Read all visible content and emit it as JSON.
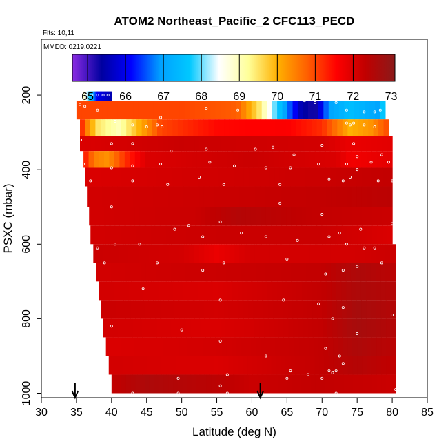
{
  "chart_data": {
    "type": "heatmap",
    "title": "ATOM2 Northeast_Pacific_2 CFC113_PECD",
    "flights_note": "Flts: 10,11",
    "date_note": "MMDD: 0219,0221",
    "xlabel": "Latitude (deg N)",
    "ylabel": "PSXC (mbar)",
    "xlim": [
      30,
      85
    ],
    "ylim": [
      1000,
      50
    ],
    "y_reversed": true,
    "x_ticks": [
      30,
      35,
      40,
      45,
      50,
      55,
      60,
      65,
      70,
      75,
      80,
      85
    ],
    "y_ticks": [
      200,
      400,
      600,
      800,
      1000
    ],
    "grid": false,
    "colorbar": {
      "min": 64.6,
      "max": 73.1,
      "ticks": [
        65,
        66,
        67,
        68,
        69,
        70,
        71,
        72,
        73
      ],
      "colors": [
        "#8a2be2",
        "#0000a0",
        "#0000ff",
        "#00a0ff",
        "#00c8ff",
        "#ffffff",
        "#ffff99",
        "#ffb000",
        "#ff6000",
        "#ff0000",
        "#c00000",
        "#8b1a1a"
      ]
    },
    "arrows_x": [
      34.8,
      61.2
    ],
    "bands": [
      {
        "p_top": 190,
        "p_bot": 215,
        "lat_start": 36.0,
        "lat_end": 40.0,
        "stops": [
          [
            36.0,
            69.0
          ],
          [
            37.0,
            67.5
          ],
          [
            38.0,
            66.0
          ],
          [
            40.0,
            65.5
          ]
        ]
      },
      {
        "p_top": 215,
        "p_bot": 265,
        "lat_start": 35.0,
        "lat_end": 79.0,
        "stops": [
          [
            35.0,
            71.0
          ],
          [
            50.0,
            71.0
          ],
          [
            58.0,
            70.8
          ],
          [
            61.0,
            69.5
          ],
          [
            64.0,
            67.5
          ],
          [
            67.0,
            65.5
          ],
          [
            69.0,
            65.2
          ],
          [
            71.0,
            67.0
          ],
          [
            74.0,
            67.5
          ],
          [
            78.0,
            67.0
          ],
          [
            79.0,
            68.0
          ]
        ]
      },
      {
        "p_top": 265,
        "p_bot": 310,
        "lat_start": 35.5,
        "lat_end": 79.5,
        "stops": [
          [
            35.5,
            71.5
          ],
          [
            36.5,
            70.5
          ],
          [
            38.0,
            69.5
          ],
          [
            41.0,
            69.0
          ],
          [
            44.0,
            70.0
          ],
          [
            47.0,
            71.0
          ],
          [
            55.0,
            71.5
          ],
          [
            65.0,
            71.6
          ],
          [
            70.0,
            71.2
          ],
          [
            74.0,
            70.0
          ],
          [
            77.0,
            70.3
          ],
          [
            79.5,
            71.0
          ]
        ]
      },
      {
        "p_top": 310,
        "p_bot": 350,
        "lat_start": 35.5,
        "lat_end": 80.0,
        "stops": [
          [
            35.5,
            72.0
          ],
          [
            50.0,
            72.2
          ],
          [
            70.0,
            72.1
          ],
          [
            74.0,
            71.8
          ],
          [
            80.0,
            71.9
          ]
        ]
      },
      {
        "p_top": 350,
        "p_bot": 395,
        "lat_start": 36.0,
        "lat_end": 80.0,
        "stops": [
          [
            36.0,
            71.5
          ],
          [
            37.5,
            70.5
          ],
          [
            39.5,
            70.3
          ],
          [
            42.0,
            71.2
          ],
          [
            45.0,
            72.0
          ],
          [
            60.0,
            72.2
          ],
          [
            72.0,
            72.0
          ],
          [
            74.0,
            71.7
          ],
          [
            80.0,
            71.9
          ]
        ]
      },
      {
        "p_top": 395,
        "p_bot": 445,
        "lat_start": 36.2,
        "lat_end": 80.0,
        "stops": [
          [
            36.2,
            72.0
          ],
          [
            50.0,
            72.1
          ],
          [
            70.0,
            72.2
          ],
          [
            80.0,
            72.3
          ]
        ]
      },
      {
        "p_top": 445,
        "p_bot": 500,
        "lat_start": 36.5,
        "lat_end": 80.0,
        "stops": [
          [
            36.5,
            72.1
          ],
          [
            55.0,
            72.2
          ],
          [
            70.0,
            72.3
          ],
          [
            80.0,
            72.4
          ]
        ]
      },
      {
        "p_top": 500,
        "p_bot": 550,
        "lat_start": 36.8,
        "lat_end": 80.0,
        "stops": [
          [
            36.8,
            72.1
          ],
          [
            52.0,
            72.2
          ],
          [
            58.0,
            72.5
          ],
          [
            68.0,
            72.3
          ],
          [
            80.0,
            72.2
          ]
        ]
      },
      {
        "p_top": 550,
        "p_bot": 600,
        "lat_start": 37.0,
        "lat_end": 80.0,
        "stops": [
          [
            37.0,
            72.1
          ],
          [
            55.0,
            72.2
          ],
          [
            70.0,
            72.2
          ],
          [
            80.0,
            72.0
          ]
        ]
      },
      {
        "p_top": 600,
        "p_bot": 650,
        "lat_start": 37.4,
        "lat_end": 80.5,
        "stops": [
          [
            37.4,
            72.2
          ],
          [
            50.0,
            72.1
          ],
          [
            55.0,
            71.8
          ],
          [
            60.0,
            72.1
          ],
          [
            75.0,
            72.1
          ],
          [
            80.5,
            72.2
          ]
        ]
      },
      {
        "p_top": 650,
        "p_bot": 700,
        "lat_start": 37.8,
        "lat_end": 80.5,
        "stops": [
          [
            37.8,
            72.1
          ],
          [
            55.0,
            72.2
          ],
          [
            70.0,
            72.3
          ],
          [
            75.0,
            72.6
          ],
          [
            80.5,
            72.4
          ]
        ]
      },
      {
        "p_top": 700,
        "p_bot": 750,
        "lat_start": 38.2,
        "lat_end": 80.5,
        "stops": [
          [
            38.2,
            72.1
          ],
          [
            55.0,
            72.0
          ],
          [
            70.0,
            72.3
          ],
          [
            75.0,
            72.6
          ],
          [
            80.5,
            72.5
          ]
        ]
      },
      {
        "p_top": 750,
        "p_bot": 800,
        "lat_start": 38.5,
        "lat_end": 80.5,
        "stops": [
          [
            38.5,
            72.2
          ],
          [
            55.0,
            72.1
          ],
          [
            70.0,
            72.3
          ],
          [
            75.0,
            72.7
          ],
          [
            80.5,
            72.5
          ]
        ]
      },
      {
        "p_top": 800,
        "p_bot": 850,
        "lat_start": 38.8,
        "lat_end": 80.5,
        "stops": [
          [
            38.8,
            72.1
          ],
          [
            55.0,
            72.0
          ],
          [
            70.0,
            72.3
          ],
          [
            75.0,
            72.7
          ],
          [
            80.5,
            72.5
          ]
        ]
      },
      {
        "p_top": 850,
        "p_bot": 900,
        "lat_start": 39.2,
        "lat_end": 80.5,
        "stops": [
          [
            39.2,
            72.0
          ],
          [
            55.0,
            72.1
          ],
          [
            70.0,
            72.3
          ],
          [
            75.0,
            72.6
          ],
          [
            80.5,
            72.4
          ]
        ]
      },
      {
        "p_top": 900,
        "p_bot": 950,
        "lat_start": 39.6,
        "lat_end": 80.5,
        "stops": [
          [
            39.6,
            72.1
          ],
          [
            55.0,
            72.0
          ],
          [
            70.0,
            72.3
          ],
          [
            75.0,
            72.5
          ],
          [
            80.5,
            72.3
          ]
        ]
      },
      {
        "p_top": 950,
        "p_bot": 1000,
        "lat_start": 40.0,
        "lat_end": 80.5,
        "stops": [
          [
            40.0,
            72.3
          ],
          [
            45.0,
            72.6
          ],
          [
            55.0,
            72.4
          ],
          [
            60.0,
            72.2
          ],
          [
            70.0,
            72.3
          ],
          [
            80.5,
            72.2
          ]
        ]
      }
    ],
    "samples": [
      [
        36.5,
        200
      ],
      [
        37.2,
        200
      ],
      [
        38.0,
        200
      ],
      [
        38.8,
        200
      ],
      [
        39.5,
        200
      ],
      [
        35.5,
        225
      ],
      [
        36.2,
        230
      ],
      [
        38.0,
        240
      ],
      [
        47.0,
        260
      ],
      [
        53.5,
        235
      ],
      [
        58.0,
        240
      ],
      [
        67.5,
        215
      ],
      [
        69.0,
        220
      ],
      [
        72.0,
        220
      ],
      [
        73.5,
        240
      ],
      [
        76.0,
        245
      ],
      [
        77.5,
        245
      ],
      [
        78.3,
        240
      ],
      [
        40.5,
        270
      ],
      [
        43.0,
        280
      ],
      [
        45.0,
        285
      ],
      [
        46.5,
        280
      ],
      [
        47.2,
        285
      ],
      [
        73.5,
        275
      ],
      [
        74.0,
        280
      ],
      [
        74.5,
        275
      ],
      [
        76.0,
        280
      ],
      [
        77.5,
        285
      ],
      [
        35.6,
        320
      ],
      [
        40.0,
        330
      ],
      [
        43.0,
        330
      ],
      [
        48.5,
        350
      ],
      [
        53.5,
        345
      ],
      [
        60.5,
        345
      ],
      [
        63.0,
        340
      ],
      [
        66.0,
        360
      ],
      [
        70.0,
        335
      ],
      [
        74.5,
        330
      ],
      [
        75.0,
        365
      ],
      [
        78.5,
        360
      ],
      [
        36.0,
        385
      ],
      [
        40.0,
        395
      ],
      [
        43.0,
        390
      ],
      [
        47.0,
        385
      ],
      [
        54.0,
        380
      ],
      [
        57.5,
        390
      ],
      [
        62.0,
        395
      ],
      [
        65.5,
        395
      ],
      [
        69.5,
        385
      ],
      [
        73.5,
        385
      ],
      [
        75.0,
        400
      ],
      [
        77.0,
        380
      ],
      [
        79.5,
        380
      ],
      [
        37.0,
        430
      ],
      [
        43.0,
        430
      ],
      [
        48.0,
        440
      ],
      [
        52.5,
        420
      ],
      [
        56.0,
        440
      ],
      [
        64.0,
        440
      ],
      [
        71.0,
        425
      ],
      [
        73.0,
        430
      ],
      [
        74.0,
        420
      ],
      [
        78.0,
        430
      ],
      [
        80.0,
        430
      ],
      [
        40.0,
        500
      ],
      [
        49.0,
        560
      ],
      [
        51.0,
        550
      ],
      [
        55.5,
        540
      ],
      [
        58.5,
        570
      ],
      [
        64.0,
        490
      ],
      [
        70.0,
        520
      ],
      [
        72.5,
        570
      ],
      [
        75.5,
        560
      ],
      [
        80.0,
        545
      ],
      [
        38.0,
        610
      ],
      [
        40.5,
        600
      ],
      [
        44.0,
        600
      ],
      [
        53.0,
        580
      ],
      [
        62.0,
        580
      ],
      [
        66.5,
        590
      ],
      [
        71.0,
        580
      ],
      [
        73.5,
        600
      ],
      [
        76.0,
        610
      ],
      [
        77.5,
        610
      ],
      [
        81.5,
        590
      ],
      [
        39.0,
        650
      ],
      [
        46.5,
        650
      ],
      [
        53.0,
        670
      ],
      [
        56.0,
        650
      ],
      [
        65.0,
        640
      ],
      [
        70.5,
        680
      ],
      [
        73.0,
        670
      ],
      [
        75.0,
        660
      ],
      [
        78.5,
        650
      ],
      [
        44.5,
        720
      ],
      [
        55.5,
        750
      ],
      [
        64.5,
        750
      ],
      [
        69.5,
        760
      ],
      [
        73.0,
        770
      ],
      [
        80.0,
        790
      ],
      [
        40.0,
        820
      ],
      [
        50.0,
        830
      ],
      [
        71.5,
        800
      ],
      [
        75.0,
        840
      ],
      [
        55.5,
        860
      ],
      [
        62.0,
        900
      ],
      [
        70.5,
        880
      ],
      [
        72.5,
        900
      ],
      [
        73.0,
        920
      ],
      [
        65.5,
        940
      ],
      [
        68.0,
        950
      ],
      [
        70.0,
        960
      ],
      [
        71.0,
        940
      ],
      [
        71.5,
        945
      ],
      [
        72.0,
        940
      ],
      [
        49.5,
        960
      ],
      [
        55.5,
        980
      ],
      [
        56.5,
        950
      ],
      [
        65.0,
        960
      ],
      [
        80.5,
        990
      ],
      [
        43.0,
        1000
      ],
      [
        49.5,
        1000
      ],
      [
        56.5,
        1000
      ],
      [
        72.0,
        1000
      ]
    ]
  }
}
